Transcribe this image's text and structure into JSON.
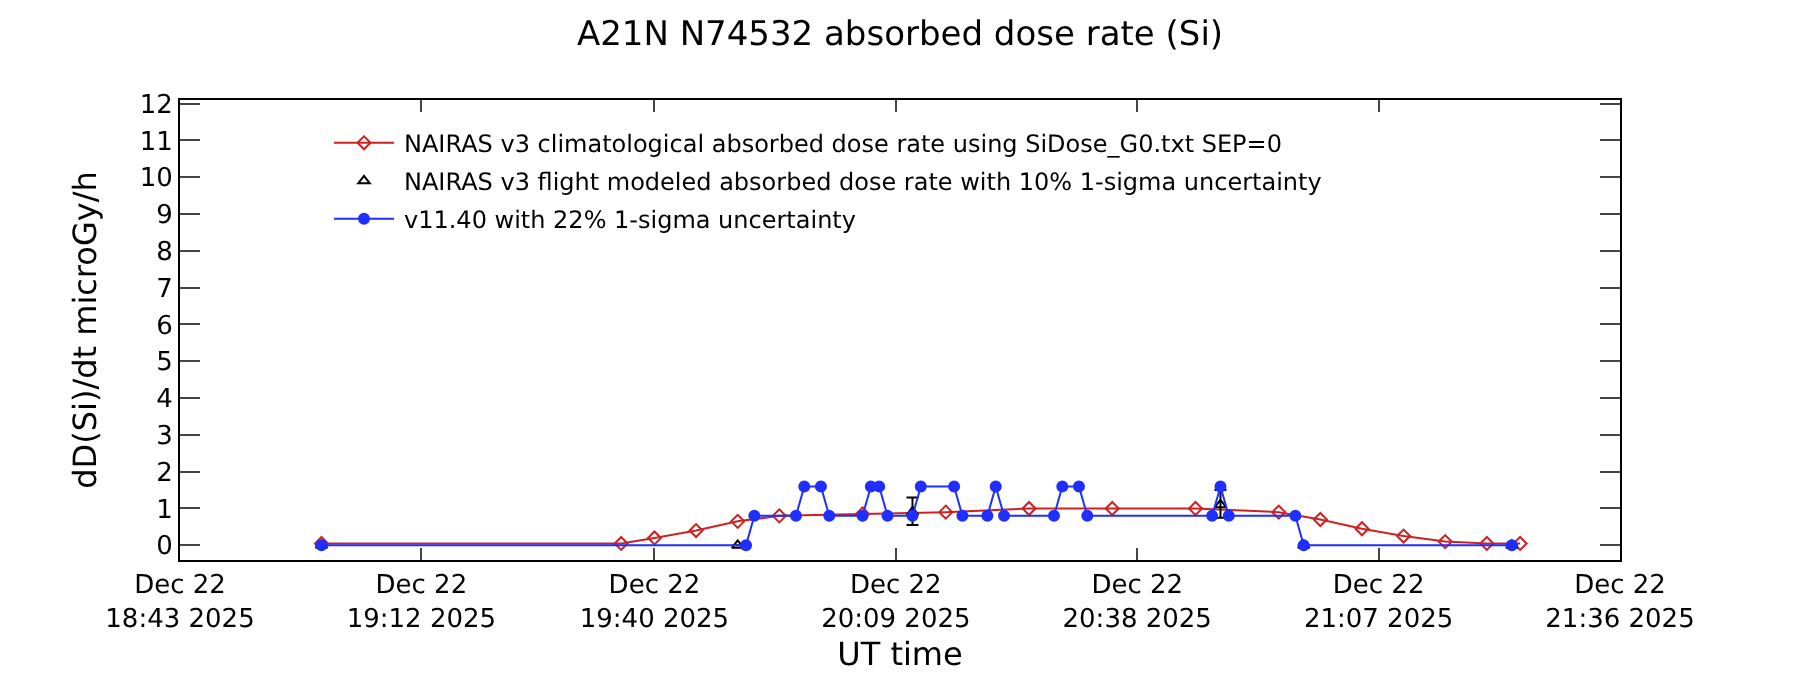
{
  "chart_data": {
    "type": "line",
    "title": "A21N N74532 absorbed dose rate (Si)",
    "xlabel": "UT time",
    "ylabel": "dD(Si)/dt microGy/h",
    "xlim": [
      "2025-12-22T18:43",
      "2025-12-22T21:36"
    ],
    "xticks": [
      {
        "value": "2025-12-22T18:43",
        "label": "Dec 22\n18:43 2025"
      },
      {
        "value": "2025-12-22T19:12",
        "label": "Dec 22\n19:12 2025"
      },
      {
        "value": "2025-12-22T19:40",
        "label": "Dec 22\n19:40 2025"
      },
      {
        "value": "2025-12-22T20:09",
        "label": "Dec 22\n20:09 2025"
      },
      {
        "value": "2025-12-22T20:38",
        "label": "Dec 22\n20:38 2025"
      },
      {
        "value": "2025-12-22T21:07",
        "label": "Dec 22\n21:07 2025"
      },
      {
        "value": "2025-12-22T21:36",
        "label": "Dec 22\n21:36 2025"
      }
    ],
    "ylim": [
      -0.4,
      12.1
    ],
    "yticks": [
      0,
      1,
      2,
      3,
      4,
      5,
      6,
      7,
      8,
      9,
      10,
      11,
      12
    ],
    "grid": false,
    "legend": "top left",
    "series": [
      {
        "name": "NAIRAS v3 climatological absorbed dose rate using SiDose_G0.txt SEP=0",
        "color": "#cc2222",
        "marker": "diamond",
        "x": [
          "2025-12-22T19:00",
          "2025-12-22T19:36",
          "2025-12-22T19:40",
          "2025-12-22T19:45",
          "2025-12-22T19:50",
          "2025-12-22T19:55",
          "2025-12-22T20:05",
          "2025-12-22T20:15",
          "2025-12-22T20:25",
          "2025-12-22T20:35",
          "2025-12-22T20:45",
          "2025-12-22T20:55",
          "2025-12-22T21:00",
          "2025-12-22T21:05",
          "2025-12-22T21:10",
          "2025-12-22T21:15",
          "2025-12-22T21:20",
          "2025-12-22T21:24"
        ],
        "values": [
          0.05,
          0.05,
          0.2,
          0.4,
          0.65,
          0.8,
          0.85,
          0.9,
          1.0,
          1.0,
          1.0,
          0.9,
          0.7,
          0.45,
          0.25,
          0.1,
          0.05,
          0.05
        ]
      },
      {
        "name": "NAIRAS v3 flight modeled absorbed dose rate with 10% 1-sigma uncertainty",
        "color": "#000000",
        "marker": "triangle",
        "type": "scatter",
        "x": [
          "2025-12-22T19:00",
          "2025-12-22T19:50",
          "2025-12-22T20:11",
          "2025-12-22T20:48",
          "2025-12-22T20:58",
          "2025-12-22T21:23"
        ],
        "values": [
          0,
          0,
          0.9,
          1.1,
          0,
          0
        ],
        "errors": [
          null,
          null,
          [
            0.55,
            1.3
          ],
          [
            0.75,
            1.5
          ],
          null,
          null
        ]
      },
      {
        "name": "v11.40 with 22% 1-sigma uncertainty",
        "color": "#1f2fff",
        "marker": "circle",
        "x": [
          "2025-12-22T19:00",
          "2025-12-22T19:51",
          "2025-12-22T19:52",
          "2025-12-22T19:57",
          "2025-12-22T19:58",
          "2025-12-22T20:00",
          "2025-12-22T20:01",
          "2025-12-22T20:05",
          "2025-12-22T20:06",
          "2025-12-22T20:07",
          "2025-12-22T20:08",
          "2025-12-22T20:11",
          "2025-12-22T20:12",
          "2025-12-22T20:16",
          "2025-12-22T20:17",
          "2025-12-22T20:20",
          "2025-12-22T20:21",
          "2025-12-22T20:22",
          "2025-12-22T20:28",
          "2025-12-22T20:29",
          "2025-12-22T20:31",
          "2025-12-22T20:32",
          "2025-12-22T20:47",
          "2025-12-22T20:48",
          "2025-12-22T20:49",
          "2025-12-22T20:57",
          "2025-12-22T20:58",
          "2025-12-22T21:23"
        ],
        "values": [
          0,
          0,
          0.8,
          0.8,
          1.6,
          1.6,
          0.8,
          0.8,
          1.6,
          1.6,
          0.8,
          0.8,
          1.6,
          1.6,
          0.8,
          0.8,
          1.6,
          0.8,
          0.8,
          1.6,
          1.6,
          0.8,
          0.8,
          1.6,
          0.8,
          0.8,
          0,
          0
        ]
      }
    ]
  }
}
